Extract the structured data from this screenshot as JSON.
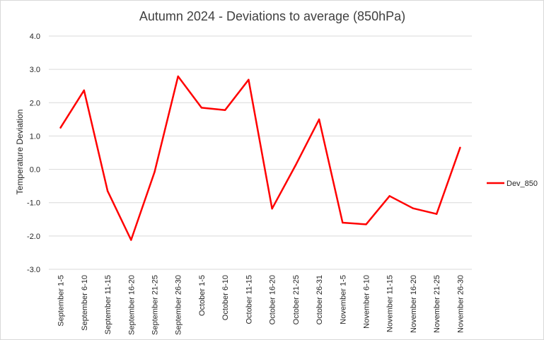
{
  "chart_data": {
    "type": "line",
    "title": "Autumn 2024 - Deviations to average (850hPa)",
    "xlabel": "",
    "ylabel": "Temperature Deviation",
    "ylim": [
      -3.0,
      4.0
    ],
    "ytick_step": 1.0,
    "grid": true,
    "legend_position": "right",
    "categories": [
      "September 1-5",
      "September 6-10",
      "September 11-15",
      "September 16-20",
      "September 21-25",
      "September 26-30",
      "October 1-5",
      "October 6-10",
      "October 11-15",
      "October 16-20",
      "October 21-25",
      "October 26-31",
      "November 1-5",
      "November 6-10",
      "November 11-15",
      "November 16-20",
      "November 21-25",
      "November 26-30"
    ],
    "series": [
      {
        "name": "Dev_850",
        "color": "#ff0000",
        "values": [
          1.25,
          2.37,
          -0.65,
          -2.12,
          -0.08,
          2.79,
          1.85,
          1.78,
          2.69,
          -1.18,
          0.12,
          1.5,
          -1.6,
          -1.65,
          -0.8,
          -1.17,
          -1.34,
          0.65
        ]
      }
    ]
  }
}
